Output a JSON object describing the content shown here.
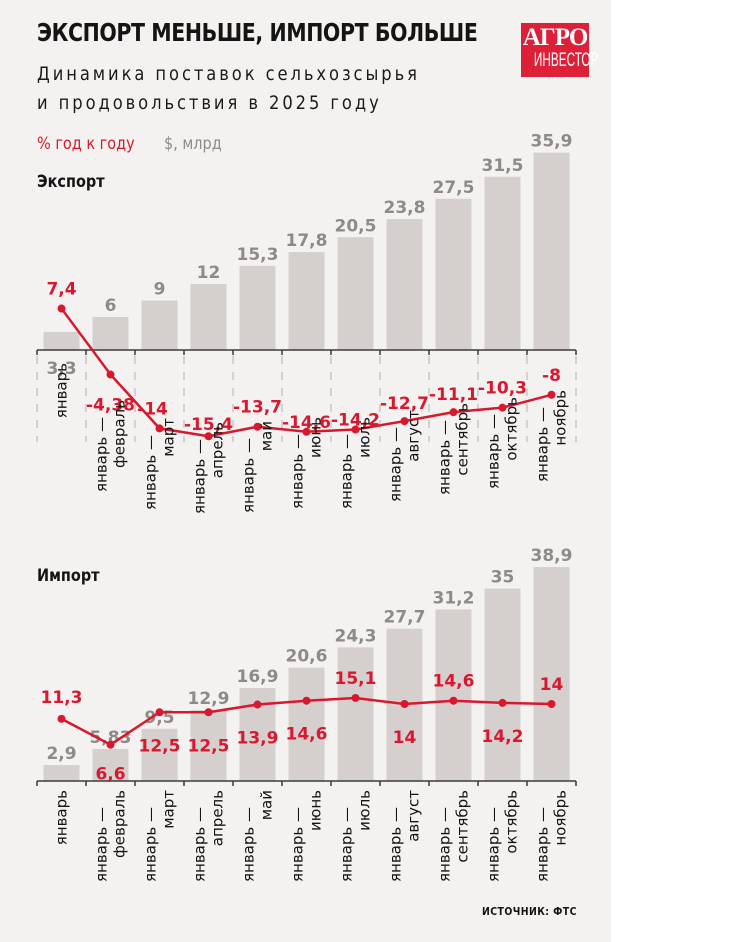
{
  "header": {
    "title": "ЭКСПОРТ МЕНЬШЕ, ИМПОРТ БОЛЬШЕ",
    "subtitle_line1": "Динамика поставок сельхозсырья",
    "subtitle_line2": "и продовольствия в 2025 году",
    "logo_line1": "АГРО",
    "logo_line2": "ИНВЕСТОР"
  },
  "legend": {
    "pct_label": "% год к году",
    "usd_label": "$, млрд"
  },
  "colors": {
    "accent_red": "#d9172f",
    "bar_gray": "#d5d0ce",
    "bar_label_gray": "#8f8a88",
    "logo_red": "#de1f38",
    "panel_bg": "#f4f2f1"
  },
  "source": "ИСТОЧНИК: ФТС",
  "chart_data": [
    {
      "type": "bar",
      "title": "Экспорт",
      "categories": [
        [
          "январь"
        ],
        [
          "январь —",
          "февраль"
        ],
        [
          "январь —",
          "март"
        ],
        [
          "январь —",
          "апрель"
        ],
        [
          "январь —",
          "май"
        ],
        [
          "январь —",
          "июнь"
        ],
        [
          "январь —",
          "июль"
        ],
        [
          "январь —",
          "август"
        ],
        [
          "январь —",
          "сентябрь"
        ],
        [
          "январь —",
          "октябрь"
        ],
        [
          "январь —",
          "ноябрь"
        ]
      ],
      "series": [
        {
          "name": "$, млрд",
          "type": "bar",
          "values": [
            3.3,
            6,
            9,
            12,
            15.3,
            17.8,
            20.5,
            23.8,
            27.5,
            31.5,
            35.9
          ],
          "labels": [
            "3,3",
            "6",
            "9",
            "12",
            "15,3",
            "17,8",
            "20,5",
            "23,8",
            "27,5",
            "31,5",
            "35,9"
          ]
        },
        {
          "name": "% год к году",
          "type": "line",
          "values": [
            7.4,
            -4.38,
            -14,
            -15.4,
            -13.7,
            -14.6,
            -14.2,
            -12.7,
            -11.1,
            -10.3,
            -8
          ],
          "labels": [
            "7,4",
            "-4,38",
            "-14",
            "-15,4",
            "-13,7",
            "-14,6",
            "-14,2",
            "-12,7",
            "-11,1",
            "-10,3",
            "-8"
          ]
        }
      ],
      "xlabel": "",
      "ylabel": "",
      "ylim": [
        -16,
        36
      ],
      "grid": false
    },
    {
      "type": "bar",
      "title": "Импорт",
      "categories": [
        [
          "январь"
        ],
        [
          "январь —",
          "февраль"
        ],
        [
          "январь —",
          "март"
        ],
        [
          "январь —",
          "апрель"
        ],
        [
          "январь —",
          "май"
        ],
        [
          "январь —",
          "июнь"
        ],
        [
          "январь —",
          "июль"
        ],
        [
          "январь —",
          "август"
        ],
        [
          "январь —",
          "сентябрь"
        ],
        [
          "январь —",
          "октябрь"
        ],
        [
          "январь —",
          "ноябрь"
        ]
      ],
      "series": [
        {
          "name": "$, млрд",
          "type": "bar",
          "values": [
            2.9,
            5.83,
            9.5,
            12.9,
            16.9,
            20.6,
            24.3,
            27.7,
            31.2,
            35,
            38.9
          ],
          "labels": [
            "2,9",
            "5,83",
            "9,5",
            "12,9",
            "16,9",
            "20,6",
            "24,3",
            "27,7",
            "31,2",
            "35",
            "38,9"
          ]
        },
        {
          "name": "% год к году",
          "type": "line",
          "values": [
            11.3,
            6.6,
            12.5,
            12.5,
            13.9,
            14.6,
            15.1,
            14,
            14.6,
            14.2,
            14
          ],
          "labels": [
            "11,3",
            "6,6",
            "12,5",
            "12,5",
            "13,9",
            "14,6",
            "15,1",
            "14",
            "14,6",
            "14,2",
            "14"
          ]
        }
      ],
      "xlabel": "",
      "ylabel": "",
      "ylim": [
        0,
        39
      ],
      "grid": false
    }
  ]
}
